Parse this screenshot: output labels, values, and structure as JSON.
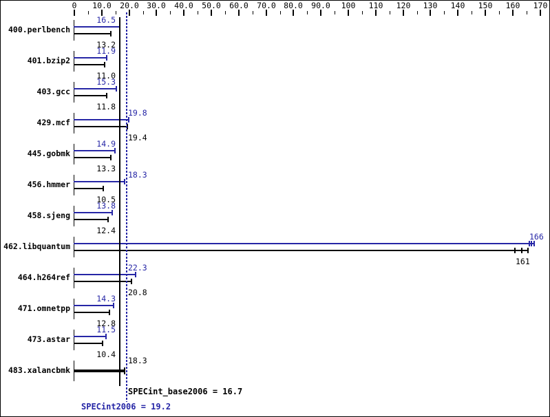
{
  "window": {
    "background": "#ffffff",
    "border_color": "#000000"
  },
  "chart_data": {
    "type": "bar",
    "orientation": "horizontal",
    "title": "",
    "xlim": [
      0,
      170
    ],
    "grid": false,
    "legend_position": "none",
    "axis_ticks": [
      {
        "value": 0,
        "label": "0"
      },
      {
        "value": 10,
        "label": "10.0"
      },
      {
        "value": 20,
        "label": "20.0"
      },
      {
        "value": 30,
        "label": "30.0"
      },
      {
        "value": 40,
        "label": "40.0"
      },
      {
        "value": 50,
        "label": "50.0"
      },
      {
        "value": 60,
        "label": "60.0"
      },
      {
        "value": 70,
        "label": "70.0"
      },
      {
        "value": 80,
        "label": "80.0"
      },
      {
        "value": 90,
        "label": "90.0"
      },
      {
        "value": 100,
        "label": "100"
      },
      {
        "value": 110,
        "label": "110"
      },
      {
        "value": 120,
        "label": "120"
      },
      {
        "value": 130,
        "label": "130"
      },
      {
        "value": 140,
        "label": "140"
      },
      {
        "value": 150,
        "label": "150"
      },
      {
        "value": 160,
        "label": "160"
      },
      {
        "value": 170,
        "label": "170"
      }
    ],
    "minor_ticks": [
      5,
      15,
      25,
      35,
      45,
      55,
      65,
      75,
      85,
      95,
      105,
      115,
      125,
      135,
      145,
      155,
      165
    ],
    "series": [
      {
        "name": "peak (SPECint2006)",
        "color": "#2626a6"
      },
      {
        "name": "base (SPECint_base2006)",
        "color": "#000000"
      }
    ],
    "benchmarks": [
      {
        "name": "400.perlbench",
        "peak": "16.5",
        "base": "13.2"
      },
      {
        "name": "401.bzip2",
        "peak": "11.9",
        "base": "11.0"
      },
      {
        "name": "403.gcc",
        "peak": "15.3",
        "base": "11.8"
      },
      {
        "name": "429.mcf",
        "peak": "19.8",
        "base": "19.4"
      },
      {
        "name": "445.gobmk",
        "peak": "14.9",
        "base": "13.3"
      },
      {
        "name": "456.hmmer",
        "peak": "18.3",
        "base": "10.5"
      },
      {
        "name": "458.sjeng",
        "peak": "13.8",
        "base": "12.4"
      },
      {
        "name": "462.libquantum",
        "peak": "166",
        "base": "161",
        "peak_runs": [
          166.0,
          166.9,
          167.8
        ],
        "base_runs": [
          160.8,
          163.3,
          165.6
        ]
      },
      {
        "name": "464.h264ref",
        "peak": "22.3",
        "base": "20.8"
      },
      {
        "name": "471.omnetpp",
        "peak": "14.3",
        "base": "12.8"
      },
      {
        "name": "473.astar",
        "peak": "11.5",
        "base": "10.4"
      },
      {
        "name": "483.xalancbmk",
        "single": true,
        "base": "18.3"
      }
    ],
    "summary": {
      "base_label": "SPECint_base2006 = 16.7",
      "base_value": 16.7,
      "peak_label": "SPECint2006 = 19.2",
      "peak_value": 19.2
    }
  },
  "colors": {
    "peak_blue": "#2626a6",
    "base_black": "#000000"
  }
}
